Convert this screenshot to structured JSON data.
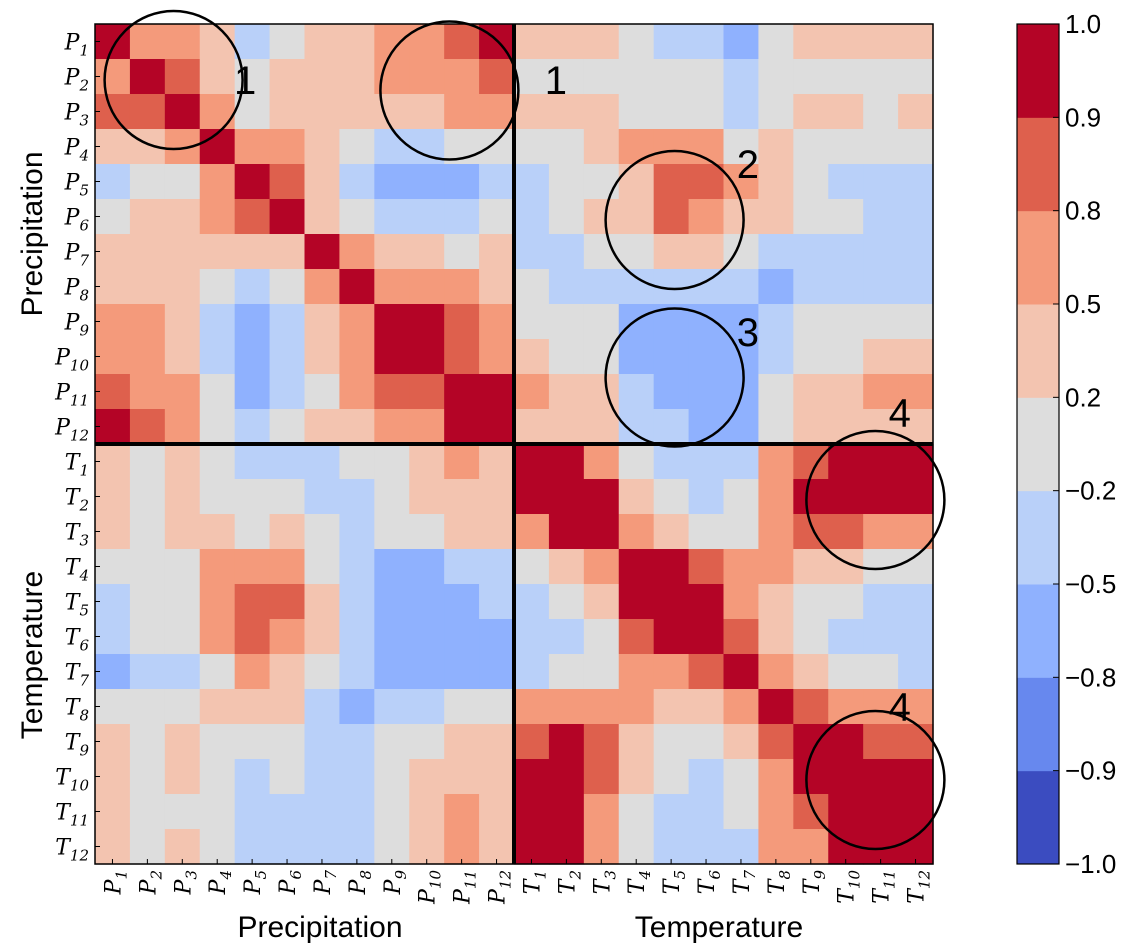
{
  "chart_data": {
    "type": "heatmap",
    "row_labels": [
      {
        "base": "P",
        "sub": "1"
      },
      {
        "base": "P",
        "sub": "2"
      },
      {
        "base": "P",
        "sub": "3"
      },
      {
        "base": "P",
        "sub": "4"
      },
      {
        "base": "P",
        "sub": "5"
      },
      {
        "base": "P",
        "sub": "6"
      },
      {
        "base": "P",
        "sub": "7"
      },
      {
        "base": "P",
        "sub": "8"
      },
      {
        "base": "P",
        "sub": "9"
      },
      {
        "base": "P",
        "sub": "10"
      },
      {
        "base": "P",
        "sub": "11"
      },
      {
        "base": "P",
        "sub": "12"
      },
      {
        "base": "T",
        "sub": "1"
      },
      {
        "base": "T",
        "sub": "2"
      },
      {
        "base": "T",
        "sub": "3"
      },
      {
        "base": "T",
        "sub": "4"
      },
      {
        "base": "T",
        "sub": "5"
      },
      {
        "base": "T",
        "sub": "6"
      },
      {
        "base": "T",
        "sub": "7"
      },
      {
        "base": "T",
        "sub": "8"
      },
      {
        "base": "T",
        "sub": "9"
      },
      {
        "base": "T",
        "sub": "10"
      },
      {
        "base": "T",
        "sub": "11"
      },
      {
        "base": "T",
        "sub": "12"
      }
    ],
    "col_labels": [
      {
        "base": "P",
        "sub": "1"
      },
      {
        "base": "P",
        "sub": "2"
      },
      {
        "base": "P",
        "sub": "3"
      },
      {
        "base": "P",
        "sub": "4"
      },
      {
        "base": "P",
        "sub": "5"
      },
      {
        "base": "P",
        "sub": "6"
      },
      {
        "base": "P",
        "sub": "7"
      },
      {
        "base": "P",
        "sub": "8"
      },
      {
        "base": "P",
        "sub": "9"
      },
      {
        "base": "P",
        "sub": "10"
      },
      {
        "base": "P",
        "sub": "11"
      },
      {
        "base": "P",
        "sub": "12"
      },
      {
        "base": "T",
        "sub": "1"
      },
      {
        "base": "T",
        "sub": "2"
      },
      {
        "base": "T",
        "sub": "3"
      },
      {
        "base": "T",
        "sub": "4"
      },
      {
        "base": "T",
        "sub": "5"
      },
      {
        "base": "T",
        "sub": "6"
      },
      {
        "base": "T",
        "sub": "7"
      },
      {
        "base": "T",
        "sub": "8"
      },
      {
        "base": "T",
        "sub": "9"
      },
      {
        "base": "T",
        "sub": "10"
      },
      {
        "base": "T",
        "sub": "11"
      },
      {
        "base": "T",
        "sub": "12"
      }
    ],
    "matrix": [
      [
        1.0,
        0.7,
        0.7,
        0.35,
        -0.35,
        0.0,
        0.35,
        0.35,
        0.65,
        0.65,
        0.85,
        0.95,
        0.35,
        0.35,
        0.35,
        0.0,
        -0.35,
        -0.35,
        -0.65,
        0.0,
        0.35,
        0.35,
        0.35,
        0.35
      ],
      [
        0.7,
        1.0,
        0.85,
        0.35,
        0.0,
        0.35,
        0.35,
        0.35,
        0.65,
        0.65,
        0.65,
        0.85,
        0.0,
        0.0,
        0.0,
        0.0,
        0.0,
        0.0,
        -0.35,
        0.0,
        0.0,
        0.0,
        0.0,
        0.0
      ],
      [
        0.85,
        0.85,
        1.0,
        0.65,
        0.0,
        0.35,
        0.35,
        0.35,
        0.35,
        0.35,
        0.65,
        0.65,
        0.35,
        0.35,
        0.35,
        0.0,
        0.0,
        0.0,
        -0.35,
        0.0,
        0.35,
        0.35,
        0.0,
        0.35
      ],
      [
        0.35,
        0.35,
        0.65,
        1.0,
        0.65,
        0.65,
        0.35,
        0.0,
        -0.35,
        -0.35,
        0.0,
        0.0,
        0.0,
        0.0,
        0.35,
        0.65,
        0.65,
        0.65,
        0.0,
        0.35,
        0.0,
        0.0,
        0.0,
        0.0
      ],
      [
        -0.35,
        0.0,
        0.0,
        0.65,
        1.0,
        0.85,
        0.35,
        -0.35,
        -0.65,
        -0.65,
        -0.65,
        -0.35,
        -0.35,
        0.0,
        0.0,
        0.35,
        0.85,
        0.85,
        0.65,
        0.35,
        0.0,
        -0.35,
        -0.35,
        -0.35
      ],
      [
        0.0,
        0.35,
        0.35,
        0.65,
        0.85,
        1.0,
        0.35,
        0.0,
        -0.35,
        -0.35,
        -0.35,
        0.0,
        -0.35,
        0.0,
        0.35,
        0.35,
        0.85,
        0.65,
        0.35,
        0.35,
        0.0,
        0.0,
        -0.35,
        -0.35
      ],
      [
        0.35,
        0.35,
        0.35,
        0.35,
        0.35,
        0.35,
        1.0,
        0.65,
        0.35,
        0.35,
        0.0,
        0.35,
        -0.35,
        -0.35,
        0.0,
        0.0,
        0.35,
        0.35,
        0.0,
        -0.35,
        -0.35,
        -0.35,
        -0.35,
        -0.35
      ],
      [
        0.35,
        0.35,
        0.35,
        0.0,
        -0.35,
        0.0,
        0.65,
        1.0,
        0.65,
        0.65,
        0.65,
        0.35,
        0.0,
        -0.35,
        -0.35,
        -0.35,
        -0.35,
        -0.35,
        -0.35,
        -0.65,
        -0.35,
        -0.35,
        -0.35,
        -0.35
      ],
      [
        0.65,
        0.65,
        0.35,
        -0.35,
        -0.65,
        -0.35,
        0.35,
        0.65,
        1.0,
        1.0,
        0.85,
        0.65,
        0.0,
        0.0,
        0.0,
        -0.65,
        -0.65,
        -0.65,
        -0.65,
        -0.35,
        0.0,
        0.0,
        0.0,
        0.0
      ],
      [
        0.65,
        0.65,
        0.35,
        -0.35,
        -0.65,
        -0.35,
        0.35,
        0.65,
        1.0,
        1.0,
        0.85,
        0.65,
        0.35,
        0.0,
        0.0,
        -0.65,
        -0.65,
        -0.65,
        -0.65,
        -0.35,
        0.0,
        0.0,
        0.35,
        0.35
      ],
      [
        0.85,
        0.65,
        0.65,
        0.0,
        -0.65,
        -0.35,
        0.0,
        0.65,
        0.85,
        0.85,
        1.0,
        1.0,
        0.65,
        0.35,
        0.35,
        -0.35,
        -0.65,
        -0.65,
        -0.65,
        0.0,
        0.35,
        0.35,
        0.65,
        0.65
      ],
      [
        1.0,
        0.85,
        0.65,
        0.0,
        -0.35,
        0.0,
        0.35,
        0.35,
        0.65,
        0.65,
        1.0,
        1.0,
        0.35,
        0.35,
        0.35,
        -0.35,
        -0.35,
        -0.65,
        -0.65,
        0.0,
        0.35,
        0.35,
        0.35,
        0.35
      ],
      [
        0.35,
        0.0,
        0.35,
        0.0,
        -0.35,
        -0.35,
        -0.35,
        0.0,
        0.0,
        0.35,
        0.65,
        0.35,
        1.0,
        1.0,
        0.65,
        0.0,
        -0.35,
        -0.35,
        -0.35,
        0.65,
        0.85,
        1.0,
        1.0,
        1.0
      ],
      [
        0.35,
        0.0,
        0.35,
        0.0,
        0.0,
        0.0,
        -0.35,
        -0.35,
        0.0,
        0.35,
        0.35,
        0.35,
        1.0,
        1.0,
        1.0,
        0.35,
        0.0,
        -0.35,
        0.0,
        0.65,
        1.0,
        1.0,
        1.0,
        1.0
      ],
      [
        0.35,
        0.0,
        0.35,
        0.35,
        0.0,
        0.35,
        0.0,
        -0.35,
        0.0,
        0.0,
        0.35,
        0.35,
        0.65,
        1.0,
        1.0,
        0.65,
        0.35,
        0.0,
        0.0,
        0.65,
        0.85,
        0.85,
        0.65,
        0.65
      ],
      [
        0.0,
        0.0,
        0.0,
        0.65,
        0.65,
        0.65,
        0.0,
        -0.35,
        -0.65,
        -0.65,
        -0.35,
        -0.35,
        0.0,
        0.35,
        0.65,
        1.0,
        1.0,
        0.85,
        0.65,
        0.65,
        0.35,
        0.35,
        0.0,
        0.0
      ],
      [
        -0.35,
        0.0,
        0.0,
        0.65,
        0.85,
        0.85,
        0.35,
        -0.35,
        -0.65,
        -0.65,
        -0.65,
        -0.35,
        -0.35,
        0.0,
        0.35,
        1.0,
        1.0,
        1.0,
        0.65,
        0.35,
        0.0,
        0.0,
        -0.35,
        -0.35
      ],
      [
        -0.35,
        0.0,
        0.0,
        0.65,
        0.85,
        0.65,
        0.35,
        -0.35,
        -0.65,
        -0.65,
        -0.65,
        -0.65,
        -0.35,
        -0.35,
        0.0,
        0.85,
        1.0,
        1.0,
        0.85,
        0.35,
        0.0,
        -0.35,
        -0.35,
        -0.35
      ],
      [
        -0.65,
        -0.35,
        -0.35,
        0.0,
        0.65,
        0.35,
        0.0,
        -0.35,
        -0.65,
        -0.65,
        -0.65,
        -0.65,
        -0.35,
        0.0,
        0.0,
        0.65,
        0.65,
        0.85,
        1.0,
        0.65,
        0.35,
        0.0,
        0.0,
        -0.35
      ],
      [
        0.0,
        0.0,
        0.0,
        0.35,
        0.35,
        0.35,
        -0.35,
        -0.65,
        -0.35,
        -0.35,
        0.0,
        0.0,
        0.65,
        0.65,
        0.65,
        0.65,
        0.35,
        0.35,
        0.65,
        1.0,
        0.85,
        0.65,
        0.65,
        0.65
      ],
      [
        0.35,
        0.0,
        0.35,
        0.0,
        0.0,
        0.0,
        -0.35,
        -0.35,
        0.0,
        0.0,
        0.35,
        0.35,
        0.85,
        1.0,
        0.85,
        0.35,
        0.0,
        0.0,
        0.35,
        0.85,
        1.0,
        1.0,
        0.85,
        0.85
      ],
      [
        0.35,
        0.0,
        0.35,
        0.0,
        -0.35,
        0.0,
        -0.35,
        -0.35,
        0.0,
        0.35,
        0.35,
        0.35,
        1.0,
        1.0,
        0.85,
        0.35,
        0.0,
        -0.35,
        0.0,
        0.65,
        1.0,
        1.0,
        1.0,
        1.0
      ],
      [
        0.35,
        0.0,
        0.0,
        0.0,
        -0.35,
        -0.35,
        -0.35,
        -0.35,
        0.0,
        0.35,
        0.65,
        0.35,
        1.0,
        1.0,
        0.65,
        0.0,
        -0.35,
        -0.35,
        0.0,
        0.65,
        0.85,
        1.0,
        1.0,
        1.0
      ],
      [
        0.35,
        0.0,
        0.35,
        0.0,
        -0.35,
        -0.35,
        -0.35,
        -0.35,
        0.0,
        0.35,
        0.65,
        0.35,
        1.0,
        1.0,
        0.65,
        0.0,
        -0.35,
        -0.35,
        -0.35,
        0.65,
        0.65,
        1.0,
        1.0,
        1.0
      ]
    ],
    "group_labels": {
      "x": [
        "Precipitation",
        "Temperature"
      ],
      "y": [
        "Precipitation",
        "Temperature"
      ]
    },
    "colorbar": {
      "boundaries": [
        -1.0,
        -0.9,
        -0.8,
        -0.5,
        -0.2,
        0.2,
        0.5,
        0.8,
        0.9,
        1.0
      ],
      "tick_labels": [
        "−1.0",
        "−0.9",
        "−0.8",
        "−0.5",
        "−0.2",
        "0.2",
        "0.5",
        "0.8",
        "0.9",
        "1.0"
      ],
      "colors": [
        "#3b4cc0",
        "#6788ee",
        "#8fb1fe",
        "#b9d0f9",
        "#dddddd",
        "#f3c4b0",
        "#f49a7b",
        "#de604d",
        "#b40426"
      ]
    },
    "annotations": [
      {
        "label": "1",
        "circle_center": [
          2.25,
          1.6
        ]
      },
      {
        "label": "1",
        "circle_center": [
          10.15,
          1.9
        ]
      },
      {
        "label": "2",
        "circle_center": [
          16.6,
          5.6
        ]
      },
      {
        "label": "3",
        "circle_center": [
          16.6,
          10.1
        ]
      },
      {
        "label": "4",
        "circle_center": [
          22.35,
          13.6
        ]
      },
      {
        "label": "4",
        "circle_center": [
          22.35,
          21.6
        ]
      }
    ],
    "annotation_text_anchor": [
      [
        4.3,
        1.6
      ],
      [
        13.2,
        1.6
      ],
      [
        18.7,
        4.0
      ],
      [
        18.7,
        8.8
      ],
      [
        23.05,
        11.1
      ],
      [
        23.05,
        19.5
      ]
    ]
  }
}
